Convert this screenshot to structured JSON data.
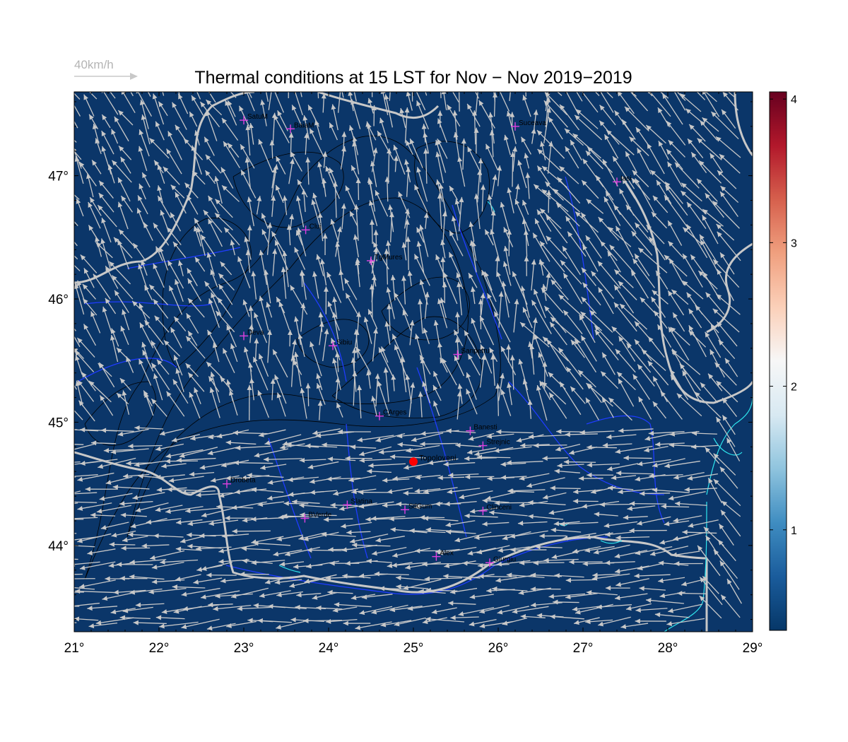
{
  "title": "Thermal conditions at 15 LST for Nov − Nov  2019−2019",
  "scale_arrow": {
    "label": "40km/h",
    "icon": "arrow-right-icon"
  },
  "map": {
    "lon_range": [
      21,
      29
    ],
    "lat_range": [
      43.3,
      47.68
    ],
    "background_color": "#0b3669",
    "contour_color": "#000000",
    "river_color": "#1f3cff",
    "border_color": "#c8c8c8",
    "water_color": "#2ee6ee",
    "wind_arrow_color": "#c8c8c8",
    "wind_direction": "mostly from east/southeast in south, from south in north",
    "x_ticks": [
      "21°",
      "22°",
      "23°",
      "24°",
      "25°",
      "26°",
      "27°",
      "28°",
      "29°"
    ],
    "x_tick_values": [
      21,
      22,
      23,
      24,
      25,
      26,
      27,
      28,
      29
    ],
    "y_ticks": [
      "44°",
      "45°",
      "46°",
      "47°"
    ],
    "y_tick_values": [
      44,
      45,
      46,
      47
    ]
  },
  "cities": [
    {
      "name": "SatuM",
      "lon": 23.0,
      "lat": 47.45
    },
    {
      "name": "BaiaM",
      "lon": 23.55,
      "lat": 47.38
    },
    {
      "name": "Suceava",
      "lon": 26.2,
      "lat": 47.4
    },
    {
      "name": "Iasi",
      "lon": 27.4,
      "lat": 46.95
    },
    {
      "name": "Cluj",
      "lon": 23.73,
      "lat": 46.56
    },
    {
      "name": "TgMures",
      "lon": 24.5,
      "lat": 46.31
    },
    {
      "name": "Deva",
      "lon": 23.0,
      "lat": 45.7
    },
    {
      "name": "Sibiu",
      "lon": 24.05,
      "lat": 45.62
    },
    {
      "name": "Sanpetru",
      "lon": 25.52,
      "lat": 45.55
    },
    {
      "name": "CArges",
      "lon": 24.6,
      "lat": 45.05
    },
    {
      "name": "Banesti",
      "lon": 25.67,
      "lat": 44.93
    },
    {
      "name": "Strejnic",
      "lon": 25.82,
      "lat": 44.81
    },
    {
      "name": "Drobeta",
      "lon": 22.8,
      "lat": 44.5
    },
    {
      "name": "Slatina",
      "lon": 24.22,
      "lat": 44.33
    },
    {
      "name": "StlGum",
      "lon": 24.9,
      "lat": 44.29
    },
    {
      "name": "Clinceni",
      "lon": 25.82,
      "lat": 44.28
    },
    {
      "name": "BVerde",
      "lon": 23.72,
      "lat": 44.22
    },
    {
      "name": "Alex",
      "lon": 25.27,
      "lat": 43.91
    },
    {
      "name": "Giurgiu",
      "lon": 25.9,
      "lat": 43.86
    }
  ],
  "highlight_point": {
    "name": "Topoloveni",
    "lon": 25.0,
    "lat": 44.68,
    "color": "#ff0000"
  },
  "colorbar": {
    "min": 0.3,
    "max": 4.05,
    "ticks": [
      "1",
      "2",
      "3",
      "4"
    ],
    "tick_values": [
      1,
      2,
      3,
      4
    ],
    "colormap": [
      "#063768",
      "#1a5c9c",
      "#3f8dc1",
      "#8fc4de",
      "#d8e9f2",
      "#f7f7f7",
      "#fbd0b9",
      "#f0a07f",
      "#d6604d",
      "#b2182b",
      "#67001f"
    ]
  }
}
